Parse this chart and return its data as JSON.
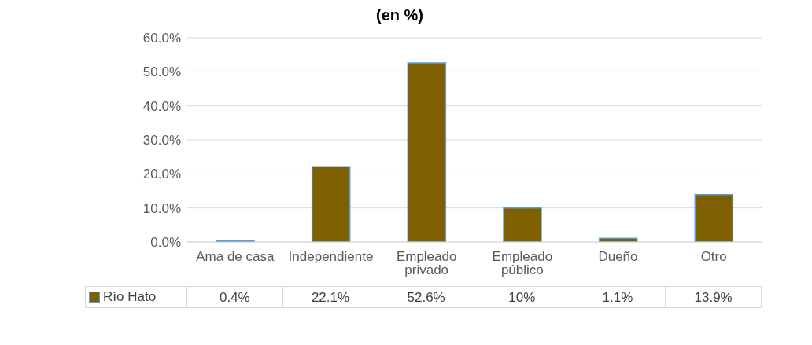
{
  "chart_data": {
    "type": "bar",
    "title": "(en %)",
    "categories": [
      "Ama de casa",
      "Independiente",
      "Empleado privado",
      "Empleado público",
      "Dueño",
      "Otro"
    ],
    "series": [
      {
        "name": "Río Hato",
        "color": "#7f6000",
        "values": [
          0.4,
          22.1,
          52.6,
          10,
          1.1,
          13.9
        ],
        "value_labels": [
          "0.4%",
          "22.1%",
          "52.6%",
          "10%",
          "1.1%",
          "13.9%"
        ]
      }
    ],
    "ylim": [
      0,
      60
    ],
    "yticks": [
      {
        "value": 0,
        "label": "0.0%"
      },
      {
        "value": 10,
        "label": "10.0%"
      },
      {
        "value": 20,
        "label": "20.0%"
      },
      {
        "value": 30,
        "label": "30.0%"
      },
      {
        "value": 40,
        "label": "40.0%"
      },
      {
        "value": 50,
        "label": "50.0%"
      },
      {
        "value": 60,
        "label": "60.0%"
      }
    ],
    "grid": "y",
    "legend": "bottom"
  }
}
